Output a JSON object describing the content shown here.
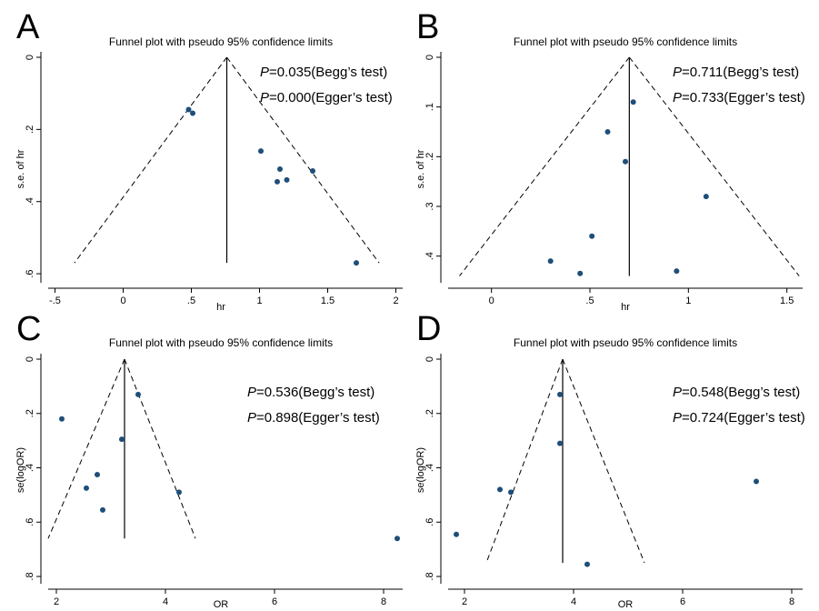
{
  "chart_data": [
    {
      "type": "scatter",
      "panel": "A",
      "title": "Funnel plot with pseudo 95% confidence limits",
      "xlabel": "hr",
      "ylabel": "s.e. of hr",
      "xlim": [
        -0.55,
        2.05
      ],
      "ylim": [
        0,
        0.62
      ],
      "y_inverted": true,
      "xticks": [
        -0.5,
        0,
        0.5,
        1,
        1.5,
        2
      ],
      "xtick_labels": [
        "-.5",
        "0",
        ".5",
        "1",
        "1.5",
        "2"
      ],
      "yticks": [
        0,
        0.2,
        0.4,
        0.6
      ],
      "ytick_labels": [
        "0",
        ".2",
        ".4",
        ".6"
      ],
      "pooled": 0.76,
      "funnel_max_se": 0.57,
      "points": [
        {
          "x": 0.48,
          "y": 0.145
        },
        {
          "x": 0.51,
          "y": 0.155
        },
        {
          "x": 1.01,
          "y": 0.26
        },
        {
          "x": 1.15,
          "y": 0.31
        },
        {
          "x": 1.13,
          "y": 0.345
        },
        {
          "x": 1.2,
          "y": 0.34
        },
        {
          "x": 1.39,
          "y": 0.315
        },
        {
          "x": 1.71,
          "y": 0.57
        }
      ],
      "stats": [
        {
          "p": "P",
          "text": "=0.035(Begg’s test)"
        },
        {
          "p": "P",
          "text": "=0.000(Egger’s test)"
        }
      ]
    },
    {
      "type": "scatter",
      "panel": "B",
      "title": "Funnel plot with pseudo 95% confidence limits",
      "xlabel": "hr",
      "ylabel": "s.e. of hr",
      "xlim": [
        -0.22,
        1.58
      ],
      "ylim": [
        0,
        0.45
      ],
      "y_inverted": true,
      "xticks": [
        0,
        0.5,
        1,
        1.5
      ],
      "xtick_labels": [
        "0",
        ".5",
        "1",
        "1.5"
      ],
      "yticks": [
        0,
        0.1,
        0.2,
        0.3,
        0.4
      ],
      "ytick_labels": [
        "0",
        ".1",
        ".2",
        ".3",
        ".4"
      ],
      "pooled": 0.7,
      "funnel_max_se": 0.44,
      "points": [
        {
          "x": 0.72,
          "y": 0.09
        },
        {
          "x": 0.59,
          "y": 0.15
        },
        {
          "x": 0.68,
          "y": 0.21
        },
        {
          "x": 1.09,
          "y": 0.28
        },
        {
          "x": 0.51,
          "y": 0.36
        },
        {
          "x": 0.3,
          "y": 0.41
        },
        {
          "x": 0.45,
          "y": 0.435
        },
        {
          "x": 0.94,
          "y": 0.43
        }
      ],
      "stats": [
        {
          "p": "P",
          "text": "=0.711(Begg’s test)"
        },
        {
          "p": "P",
          "text": "=0.733(Egger’s test)"
        }
      ]
    },
    {
      "type": "scatter",
      "panel": "C",
      "title": "Funnel plot with pseudo 95% confidence limits",
      "xlabel": "OR",
      "ylabel": "se(logOR)",
      "xlim": [
        1.85,
        8.35
      ],
      "ylim": [
        0,
        0.82
      ],
      "y_inverted": true,
      "xticks": [
        2,
        4,
        6,
        8
      ],
      "xtick_labels": [
        "2",
        "4",
        "6",
        "8"
      ],
      "yticks": [
        0,
        0.2,
        0.4,
        0.6,
        0.8
      ],
      "ytick_labels": [
        "0",
        ".2",
        ".4",
        ".6",
        ".8"
      ],
      "pooled": 3.25,
      "funnel_max_se": 0.66,
      "funnel_lower_end": 1.85,
      "funnel_upper_end": 4.55,
      "points": [
        {
          "x": 3.5,
          "y": 0.13
        },
        {
          "x": 2.1,
          "y": 0.22
        },
        {
          "x": 3.2,
          "y": 0.295
        },
        {
          "x": 2.75,
          "y": 0.425
        },
        {
          "x": 2.55,
          "y": 0.475
        },
        {
          "x": 4.25,
          "y": 0.49
        },
        {
          "x": 2.85,
          "y": 0.555
        },
        {
          "x": 8.25,
          "y": 0.66
        }
      ],
      "stats": [
        {
          "p": "P",
          "text": "=0.536(Begg’s test)"
        },
        {
          "p": "P",
          "text": "=0.898(Egger’s test)"
        }
      ]
    },
    {
      "type": "scatter",
      "panel": "D",
      "title": "Funnel plot with pseudo 95% confidence limits",
      "xlabel": "OR",
      "ylabel": "se(logOR)",
      "xlim": [
        1.7,
        8.2
      ],
      "ylim": [
        0,
        0.82
      ],
      "y_inverted": true,
      "xticks": [
        2,
        4,
        6,
        8
      ],
      "xtick_labels": [
        "2",
        "4",
        "6",
        "8"
      ],
      "yticks": [
        0,
        0.2,
        0.4,
        0.6,
        0.8
      ],
      "ytick_labels": [
        "0",
        ".2",
        ".4",
        ".6",
        ".8"
      ],
      "pooled": 3.8,
      "funnel_max_se": 0.75,
      "funnel_lower_end": 2.4,
      "funnel_upper_end": 5.3,
      "points": [
        {
          "x": 3.75,
          "y": 0.13
        },
        {
          "x": 3.75,
          "y": 0.31
        },
        {
          "x": 7.35,
          "y": 0.45
        },
        {
          "x": 2.65,
          "y": 0.48
        },
        {
          "x": 2.85,
          "y": 0.49
        },
        {
          "x": 1.85,
          "y": 0.645
        },
        {
          "x": 4.25,
          "y": 0.755
        }
      ],
      "stats": [
        {
          "p": "P",
          "text": "=0.548(Begg’s test)"
        },
        {
          "p": "P",
          "text": "=0.724(Egger’s test)"
        }
      ]
    }
  ]
}
